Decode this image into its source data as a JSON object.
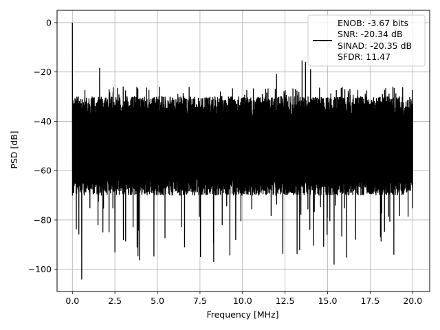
{
  "chart_data": {
    "type": "line",
    "xlabel": "Frequency [MHz]",
    "ylabel": "PSD [dB]",
    "xlim": [
      -0.9,
      21.0
    ],
    "ylim": [
      -109,
      5
    ],
    "xticks": [
      0.0,
      2.5,
      5.0,
      7.5,
      10.0,
      12.5,
      15.0,
      17.5,
      20.0
    ],
    "xtick_labels": [
      "0.0",
      "2.5",
      "5.0",
      "7.5",
      "10.0",
      "12.5",
      "15.0",
      "17.5",
      "20.0"
    ],
    "yticks": [
      0,
      -20,
      -40,
      -60,
      -80,
      -100
    ],
    "ytick_labels": [
      "0",
      "−20",
      "−40",
      "−60",
      "−80",
      "−100"
    ],
    "grid": true,
    "legend_position": "upper-right",
    "legend_lines": [
      "ENOB: -3.67 bits",
      "SNR: -20.34 dB",
      "SINAD: -20.35 dB",
      "SFDR: 11.47"
    ],
    "series_color": "#000000",
    "noise_floor": {
      "x_range": [
        0.0,
        20.0
      ],
      "upper_envelope_db": -28,
      "lower_envelope_db": -70,
      "min_spike_db": -92
    },
    "peaks": [
      {
        "x": 0.0,
        "y": 0.0
      },
      {
        "x": 0.55,
        "y": -104.0
      },
      {
        "x": 1.6,
        "y": -18.5
      },
      {
        "x": 2.5,
        "y": -93.0
      },
      {
        "x": 3.0,
        "y": -88.0
      },
      {
        "x": 9.6,
        "y": -88.0
      },
      {
        "x": 12.0,
        "y": -21.0
      },
      {
        "x": 13.5,
        "y": -15.5
      },
      {
        "x": 13.7,
        "y": -16.0
      },
      {
        "x": 14.0,
        "y": -19.0
      }
    ]
  }
}
